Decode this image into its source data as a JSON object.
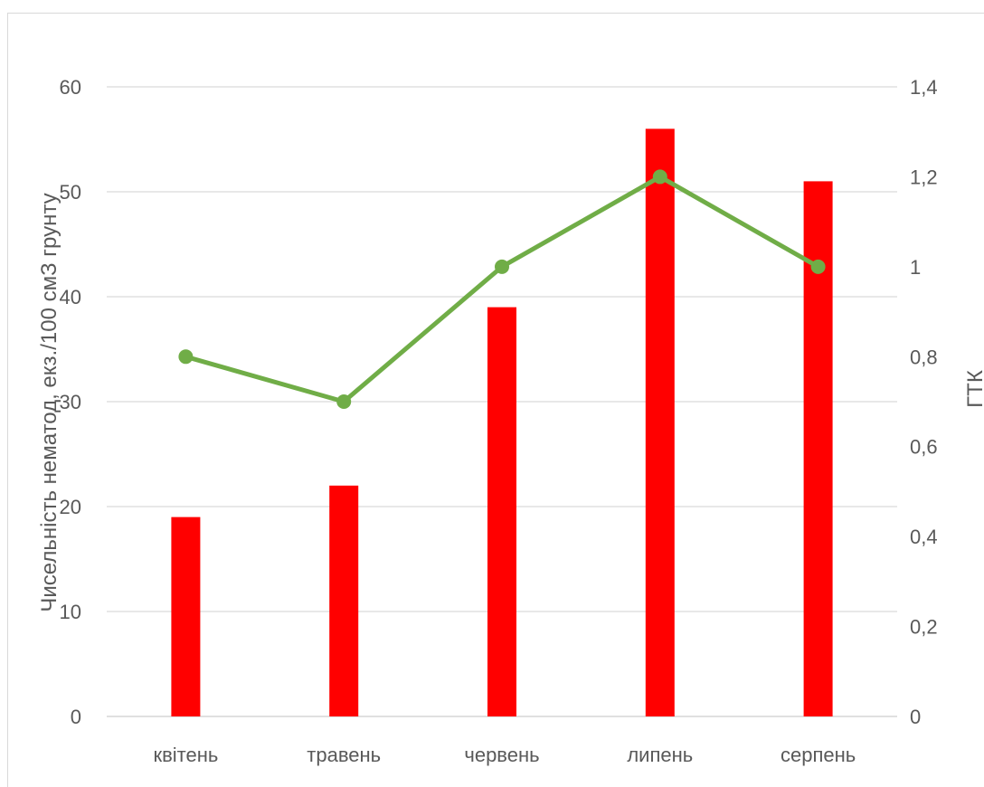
{
  "chart_data": {
    "type": "bar",
    "categories": [
      "квітень",
      "травень",
      "червень",
      "липень",
      "серпень"
    ],
    "series": [
      {
        "type": "bar",
        "axis": "left",
        "values": [
          19,
          22,
          39,
          56,
          51
        ],
        "color": "#ff0000"
      },
      {
        "type": "line",
        "axis": "right",
        "values": [
          0.8,
          0.7,
          1.0,
          1.2,
          1.0
        ],
        "color": "#70ad47"
      }
    ],
    "ylabel": "Чисельність нематод, екз./100 смЗ грунту",
    "y2label": "ГТК",
    "ylim": [
      0,
      60
    ],
    "y2lim": [
      0,
      1.4
    ],
    "yticks": [
      0,
      10,
      20,
      30,
      40,
      50,
      60
    ],
    "y2ticks": [
      "0",
      "0,2",
      "0,4",
      "0,6",
      "0,8",
      "1",
      "1,2",
      "1,4"
    ],
    "grid": true,
    "gridColor": "#d9d9d9",
    "textColor": "#595959"
  }
}
